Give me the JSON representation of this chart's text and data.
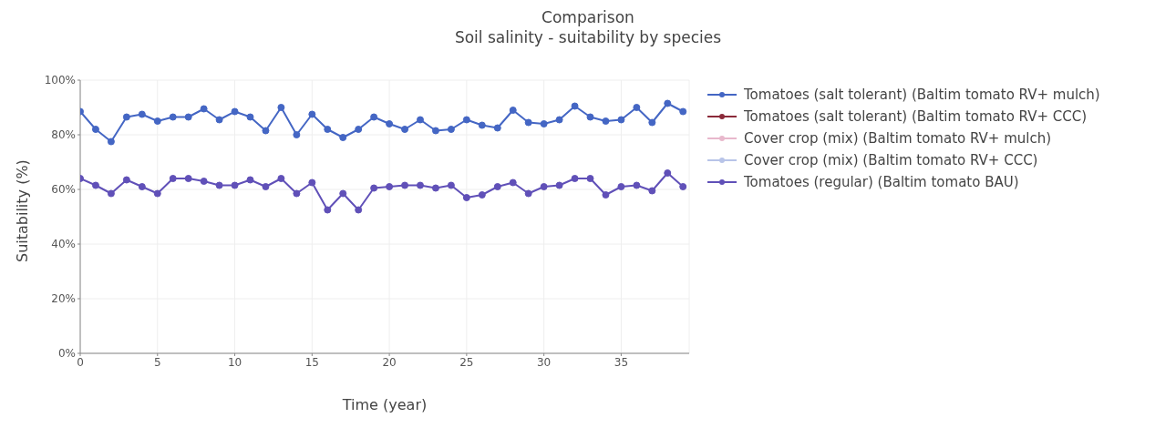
{
  "chart_data": {
    "type": "line",
    "title": "Comparison",
    "subtitle": "Soil salinity - suitability by species",
    "xlabel": "Time (year)",
    "ylabel": "Suitability (%)",
    "x": [
      0,
      1,
      2,
      3,
      4,
      5,
      6,
      7,
      8,
      9,
      10,
      11,
      12,
      13,
      14,
      15,
      16,
      17,
      18,
      19,
      20,
      21,
      22,
      23,
      24,
      25,
      26,
      27,
      28,
      29,
      30,
      31,
      32,
      33,
      34,
      35,
      36,
      37,
      38,
      39
    ],
    "series": [
      {
        "name": "Tomatoes (salt tolerant) (Baltim tomato RV+ mulch)",
        "color": "#4466c4",
        "values": [
          88.5,
          82,
          77.5,
          86.5,
          87.5,
          85,
          86.5,
          86.5,
          89.5,
          85.5,
          88.5,
          86.5,
          81.5,
          90,
          80,
          87.5,
          82,
          79,
          82,
          86.5,
          84,
          82,
          85.5,
          81.5,
          82,
          85.5,
          83.5,
          82.5,
          89,
          84.5,
          84,
          85.5,
          90.5,
          86.5,
          85,
          85.5,
          90,
          84.5,
          91.5,
          88.5
        ]
      },
      {
        "name": "Tomatoes (salt tolerant) (Baltim tomato RV+ CCC)",
        "color": "#8b2a3a",
        "values": [
          null,
          null,
          null,
          null,
          null,
          null,
          null,
          null,
          null,
          null,
          null,
          null,
          null,
          null,
          null,
          null,
          null,
          null,
          null,
          null,
          null,
          null,
          null,
          null,
          null,
          null,
          null,
          null,
          null,
          null,
          null,
          null,
          null,
          null,
          null,
          null,
          null,
          null,
          null,
          null
        ]
      },
      {
        "name": "Cover crop (mix) (Baltim tomato RV+ mulch)",
        "color": "#e8b8cc",
        "values": [
          null,
          null,
          null,
          null,
          null,
          null,
          null,
          null,
          null,
          null,
          null,
          null,
          null,
          null,
          null,
          null,
          null,
          null,
          null,
          null,
          null,
          null,
          null,
          null,
          null,
          null,
          null,
          null,
          null,
          null,
          null,
          null,
          null,
          null,
          null,
          null,
          null,
          null,
          null,
          null
        ]
      },
      {
        "name": "Cover crop (mix) (Baltim tomato RV+ CCC)",
        "color": "#b8c4e8",
        "values": [
          null,
          null,
          null,
          null,
          null,
          null,
          null,
          null,
          null,
          null,
          null,
          null,
          null,
          null,
          null,
          null,
          null,
          null,
          null,
          null,
          null,
          null,
          null,
          null,
          null,
          null,
          null,
          null,
          null,
          null,
          null,
          null,
          null,
          null,
          null,
          null,
          null,
          null,
          null,
          null
        ]
      },
      {
        "name": "Tomatoes (regular) (Baltim tomato BAU)",
        "color": "#6050b8",
        "values": [
          64,
          61.5,
          58.5,
          63.5,
          61,
          58.5,
          64,
          64,
          63,
          61.5,
          61.5,
          63.5,
          61,
          64,
          58.5,
          62.5,
          52.5,
          58.5,
          52.5,
          60.5,
          61,
          61.5,
          61.5,
          60.5,
          61.5,
          57,
          58,
          61,
          62.5,
          58.5,
          61,
          61.5,
          64,
          64,
          58,
          61,
          61.5,
          59.5,
          66,
          61
        ]
      }
    ],
    "xlim": [
      0,
      39.4
    ],
    "xticks": [
      0,
      5,
      10,
      15,
      20,
      25,
      30,
      35
    ],
    "ylim": [
      0,
      100
    ],
    "yticks": [
      {
        "value": 0,
        "label": "0%"
      },
      {
        "value": 20,
        "label": "20%"
      },
      {
        "value": 40,
        "label": "40%"
      },
      {
        "value": 60,
        "label": "60%"
      },
      {
        "value": 80,
        "label": "80%"
      },
      {
        "value": 100,
        "label": "100%"
      }
    ],
    "grid": true,
    "legend": "right",
    "marker": "circle",
    "line_style": "solid"
  }
}
